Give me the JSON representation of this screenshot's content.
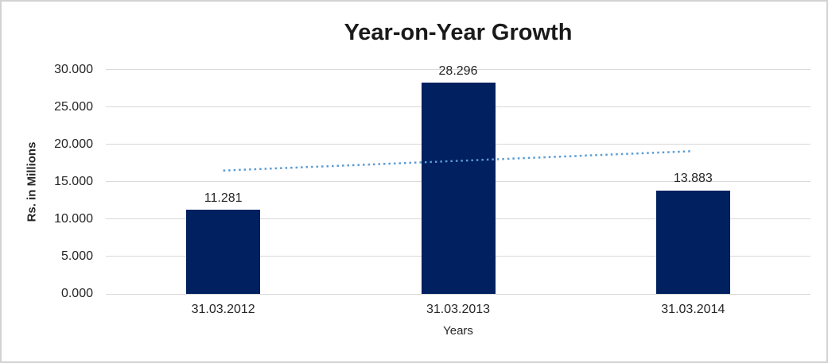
{
  "chart_data": {
    "type": "bar",
    "title": "Year-on-Year Growth",
    "xlabel": "Years",
    "ylabel": "Rs. in Millions",
    "categories": [
      "31.03.2012",
      "31.03.2013",
      "31.03.2014"
    ],
    "values": [
      11.281,
      28.296,
      13.883
    ],
    "data_labels": [
      "11.281",
      "28.296",
      "13.883"
    ],
    "y_ticks": [
      {
        "value": 0,
        "label": "0.000"
      },
      {
        "value": 5,
        "label": "5.000"
      },
      {
        "value": 10,
        "label": "10.000"
      },
      {
        "value": 15,
        "label": "15.000"
      },
      {
        "value": 20,
        "label": "20.000"
      },
      {
        "value": 25,
        "label": "25.000"
      },
      {
        "value": 30,
        "label": "30.000"
      }
    ],
    "ylim": [
      0,
      30
    ],
    "grid": true,
    "legend": "none",
    "bar_color": "#002060",
    "gridline_color": "#d9d9d9",
    "label_color": "#262626",
    "trendline": {
      "type": "linear",
      "style": "dotted",
      "color": "#5b9bd5",
      "start_value": 16.52,
      "end_value": 19.12
    }
  }
}
